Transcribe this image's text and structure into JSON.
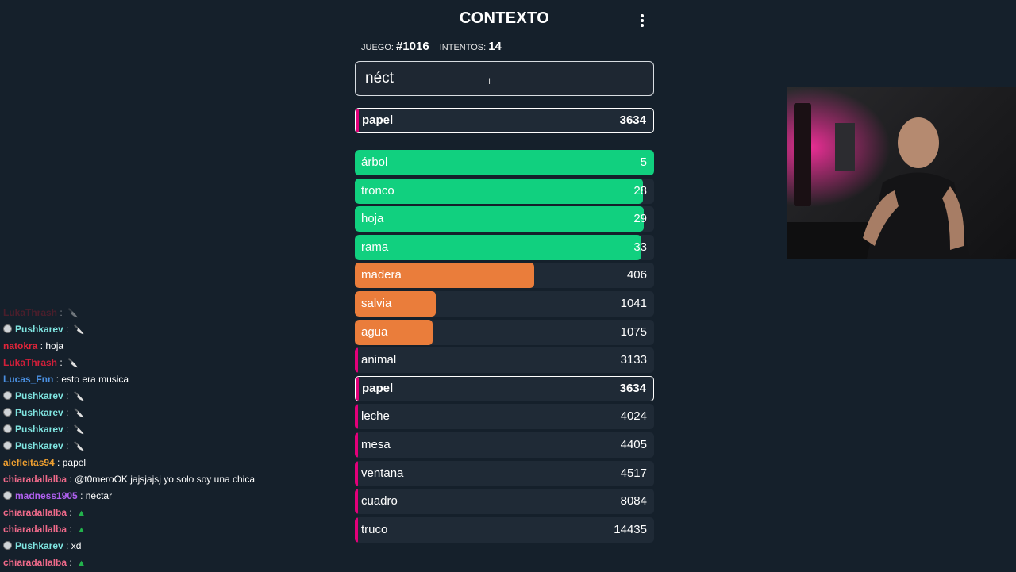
{
  "app": {
    "title": "CONTEXTO",
    "game_label": "JUEGO:",
    "game_number": "#1016",
    "attempts_label": "INTENTOS:",
    "attempts_count": "14",
    "input_value": "néct"
  },
  "colors": {
    "green": "#11d07f",
    "orange": "#ea7d3b",
    "pink": "#e2007a",
    "background": "#15202b",
    "row_background": "#1f2a36"
  },
  "current_guess": {
    "word": "papel",
    "rank": "3634",
    "color": "pink",
    "fill": 0.01
  },
  "guesses": [
    {
      "word": "árbol",
      "rank": "5",
      "color": "green",
      "fill": 1.0
    },
    {
      "word": "tronco",
      "rank": "28",
      "color": "green",
      "fill": 0.963
    },
    {
      "word": "hoja",
      "rank": "29",
      "color": "green",
      "fill": 0.965
    },
    {
      "word": "rama",
      "rank": "33",
      "color": "green",
      "fill": 0.958
    },
    {
      "word": "madera",
      "rank": "406",
      "color": "orange",
      "fill": 0.6
    },
    {
      "word": "salvia",
      "rank": "1041",
      "color": "orange",
      "fill": 0.27
    },
    {
      "word": "agua",
      "rank": "1075",
      "color": "orange",
      "fill": 0.26
    },
    {
      "word": "animal",
      "rank": "3133",
      "color": "pink",
      "fill": 0.01
    },
    {
      "word": "papel",
      "rank": "3634",
      "color": "pink",
      "fill": 0.01,
      "current": true
    },
    {
      "word": "leche",
      "rank": "4024",
      "color": "pink",
      "fill": 0.01
    },
    {
      "word": "mesa",
      "rank": "4405",
      "color": "pink",
      "fill": 0.01
    },
    {
      "word": "ventana",
      "rank": "4517",
      "color": "pink",
      "fill": 0.01
    },
    {
      "word": "cuadro",
      "rank": "8084",
      "color": "pink",
      "fill": 0.01
    },
    {
      "word": "truco",
      "rank": "14435",
      "color": "pink",
      "fill": 0.01
    }
  ],
  "chat": [
    {
      "user": "LukaThrash",
      "color": "#8a1c2c",
      "badge": false,
      "text": "",
      "emote": "🔪"
    },
    {
      "user": "Pushkarev",
      "color": "#7fe4e0",
      "badge": true,
      "text": "",
      "emote": "🔪"
    },
    {
      "user": "natokra",
      "color": "#e0253a",
      "badge": false,
      "text": "hoja",
      "emote": ""
    },
    {
      "user": "LukaThrash",
      "color": "#d11f3a",
      "badge": false,
      "text": "",
      "emote": "🔪"
    },
    {
      "user": "Lucas_Fnn",
      "color": "#4a8fe0",
      "badge": false,
      "text": "esto era musica",
      "emote": ""
    },
    {
      "user": "Pushkarev",
      "color": "#7fe4e0",
      "badge": true,
      "text": "",
      "emote": "🔪"
    },
    {
      "user": "Pushkarev",
      "color": "#7fe4e0",
      "badge": true,
      "text": "",
      "emote": "🔪"
    },
    {
      "user": "Pushkarev",
      "color": "#7fe4e0",
      "badge": true,
      "text": "",
      "emote": "🔪"
    },
    {
      "user": "Pushkarev",
      "color": "#7fe4e0",
      "badge": true,
      "text": "",
      "emote": "🔪"
    },
    {
      "user": "alefleitas94",
      "color": "#f0a030",
      "badge": false,
      "text": "papel",
      "emote": ""
    },
    {
      "user": "chiaradallalba",
      "color": "#f06a8a",
      "badge": false,
      "text": "@t0meroOK jajsjajsj yo solo soy una chica",
      "emote": ""
    },
    {
      "user": "madness1905",
      "color": "#b060f0",
      "badge": true,
      "text": "néctar",
      "emote": ""
    },
    {
      "user": "chiaradallalba",
      "color": "#f06a8a",
      "badge": false,
      "text": "",
      "emote": "▲"
    },
    {
      "user": "chiaradallalba",
      "color": "#f06a8a",
      "badge": false,
      "text": "",
      "emote": "▲"
    },
    {
      "user": "Pushkarev",
      "color": "#7fe4e0",
      "badge": true,
      "text": "xd",
      "emote": ""
    },
    {
      "user": "chiaradallalba",
      "color": "#f06a8a",
      "badge": false,
      "text": "",
      "emote": "▲"
    }
  ]
}
